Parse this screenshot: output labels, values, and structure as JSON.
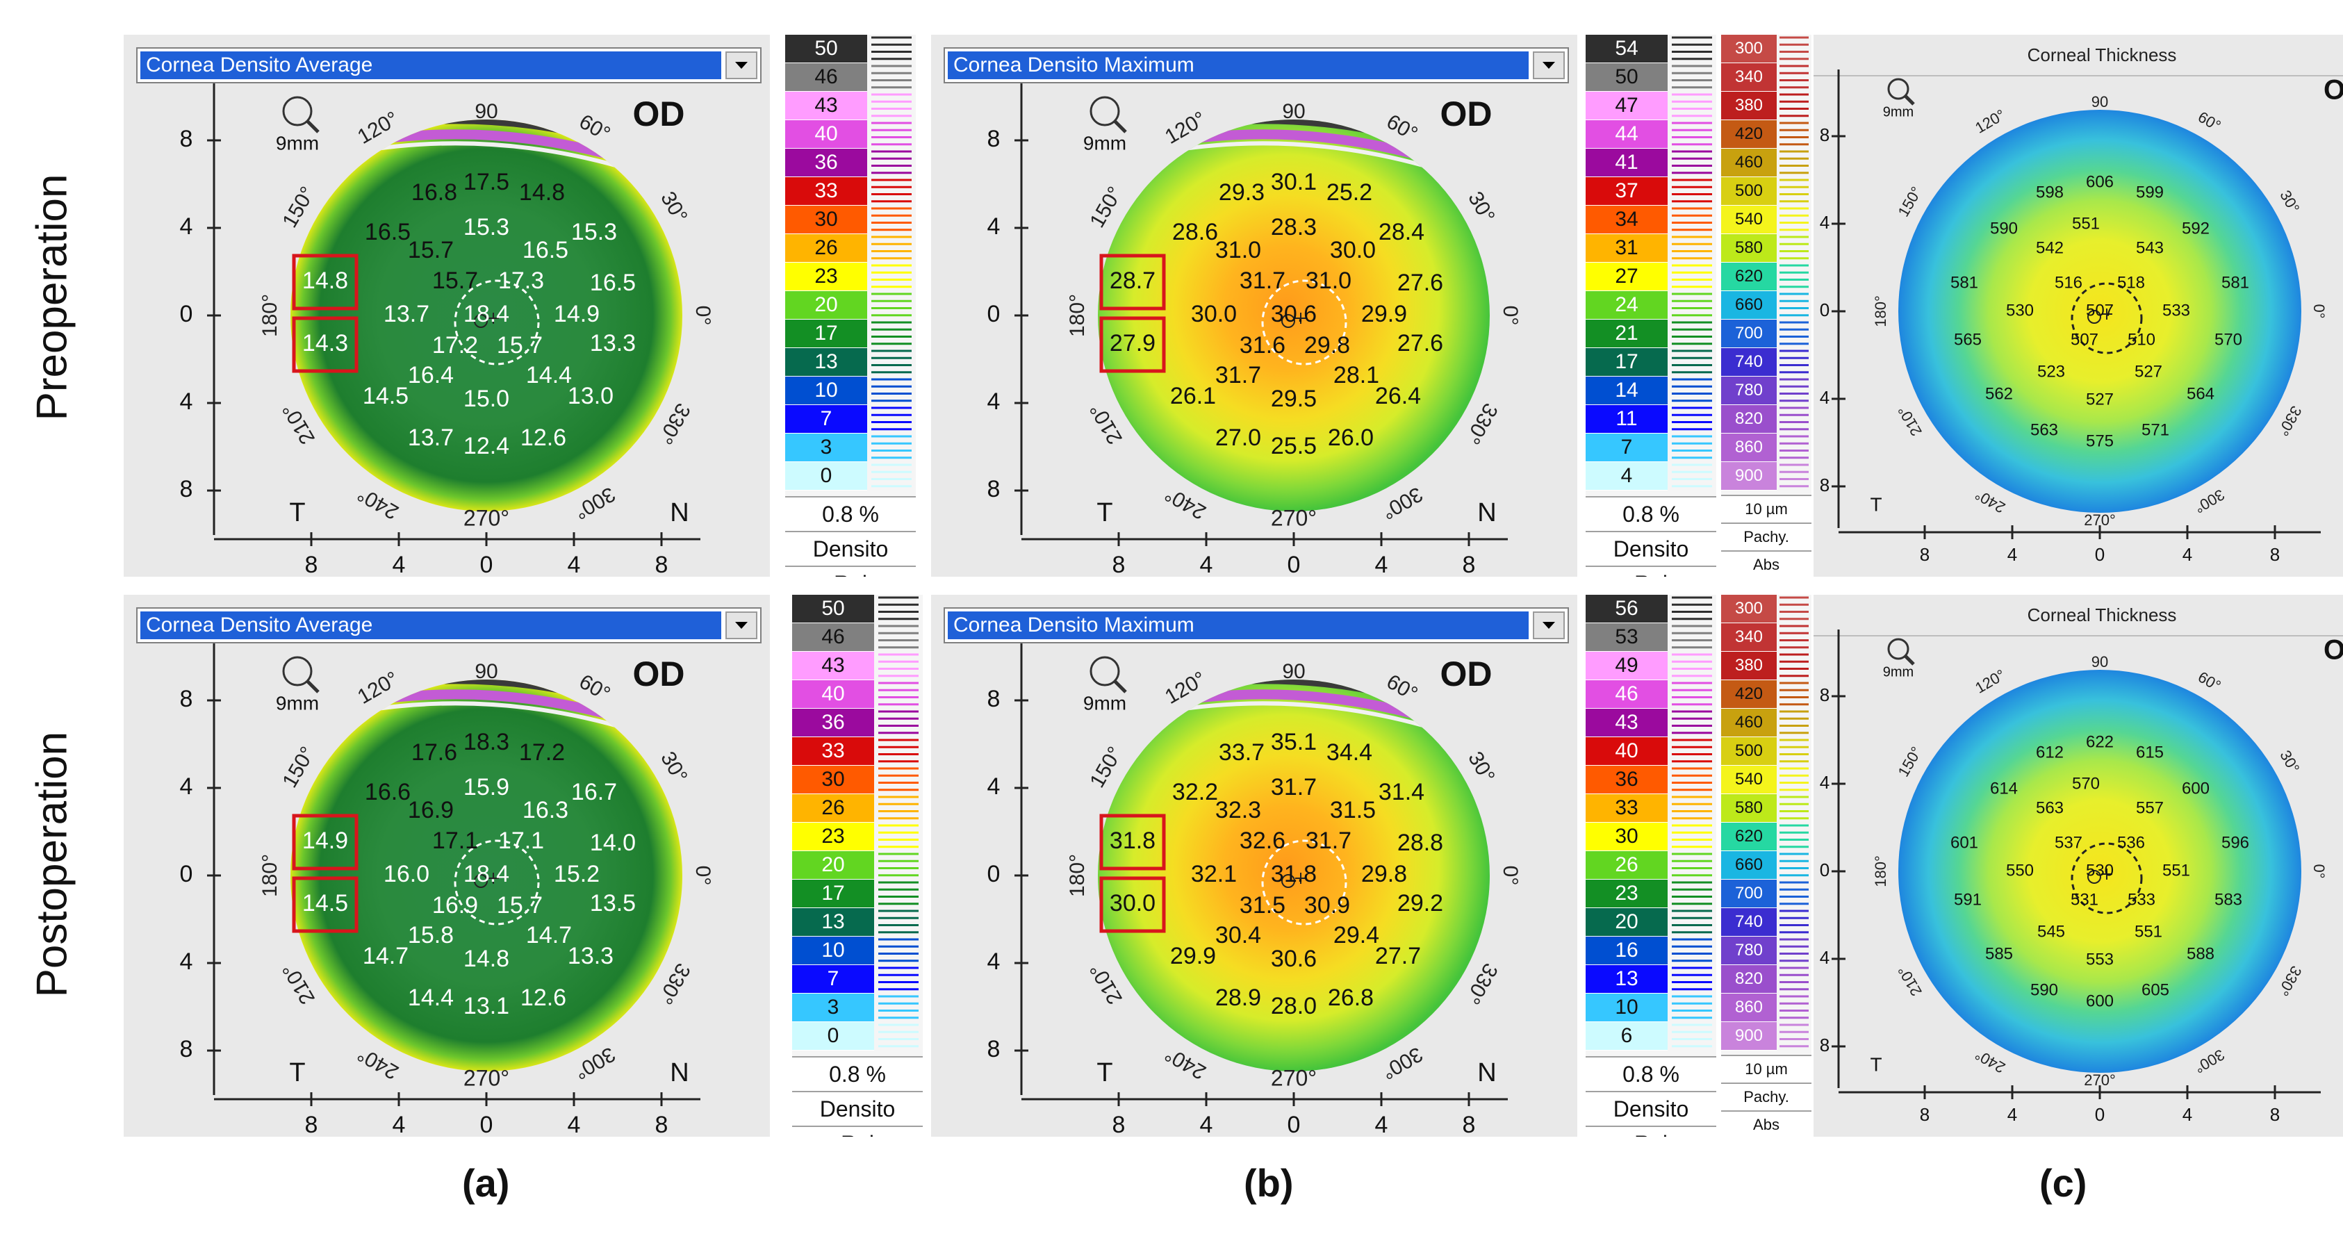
{
  "row_labels": [
    "Preoperation",
    "Postoperation"
  ],
  "panel_labels": [
    "(a)",
    "(b)",
    "(c)"
  ],
  "legends": {
    "densito_tail": [
      "0.8 %",
      "Densito",
      "Rel"
    ],
    "pachy_values": [
      "300",
      "340",
      "380",
      "420",
      "460",
      "500",
      "540",
      "580",
      "620",
      "660",
      "700",
      "740",
      "780",
      "820",
      "860",
      "900"
    ],
    "pachy_tail": [
      "10 µm",
      "Pachy.",
      "Abs"
    ]
  },
  "map_labels": {
    "zoom": "9mm",
    "eye": "OD",
    "temporal": "T",
    "nasal": "N",
    "deg_90": "90",
    "deg_120": "120°",
    "deg_150": "150°",
    "deg_180": "180°",
    "deg_210": "210°",
    "deg_240": "240°",
    "deg_270": "270°",
    "deg_300": "300°",
    "deg_330": "330°",
    "deg_0": "0°",
    "deg_30": "30°",
    "deg_60": "60°",
    "y_ticks": [
      "8",
      "4",
      "0",
      "4",
      "8"
    ],
    "x_ticks": [
      "8",
      "4",
      "0",
      "4",
      "8"
    ]
  },
  "panels": {
    "pre_avg": {
      "dropdown": "Cornea Densito Average",
      "legend": [
        "50",
        "46",
        "43",
        "40",
        "36",
        "33",
        "30",
        "26",
        "23",
        "20",
        "17",
        "13",
        "10",
        "7",
        "3",
        "0"
      ],
      "highlight": [
        "14.8",
        "14.3"
      ],
      "values": [
        "17.5",
        "16.8",
        "14.8",
        "15.3",
        "16.5",
        "15.3",
        "15.7",
        "16.5",
        "15.7",
        "17.3",
        "16.5",
        "13.7",
        "18.4",
        "14.9",
        "17.2",
        "15.7",
        "13.3",
        "16.4",
        "14.4",
        "14.5",
        "15.0",
        "13.0",
        "13.7",
        "12.4",
        "12.6"
      ]
    },
    "pre_max": {
      "dropdown": "Cornea Densito Maximum",
      "legend": [
        "54",
        "50",
        "47",
        "44",
        "41",
        "37",
        "34",
        "31",
        "27",
        "24",
        "21",
        "17",
        "14",
        "11",
        "7",
        "4"
      ],
      "highlight": [
        "28.7",
        "27.9"
      ],
      "values": [
        "30.1",
        "29.3",
        "25.2",
        "28.3",
        "28.6",
        "28.4",
        "31.0",
        "30.0",
        "31.7",
        "31.0",
        "27.6",
        "30.0",
        "30.6",
        "29.9",
        "31.6",
        "29.8",
        "27.6",
        "31.7",
        "28.1",
        "26.1",
        "29.5",
        "26.4",
        "27.0",
        "25.5",
        "26.0"
      ]
    },
    "post_avg": {
      "dropdown": "Cornea Densito Average",
      "legend": [
        "50",
        "46",
        "43",
        "40",
        "36",
        "33",
        "30",
        "26",
        "23",
        "20",
        "17",
        "13",
        "10",
        "7",
        "3",
        "0"
      ],
      "highlight": [
        "14.9",
        "14.5"
      ],
      "values": [
        "18.3",
        "17.6",
        "17.2",
        "15.9",
        "16.6",
        "16.7",
        "16.9",
        "16.3",
        "17.1",
        "17.1",
        "14.0",
        "16.0",
        "18.4",
        "15.2",
        "16.9",
        "15.7",
        "13.5",
        "15.8",
        "14.7",
        "14.7",
        "14.8",
        "13.3",
        "14.4",
        "13.1",
        "12.6"
      ]
    },
    "post_max": {
      "dropdown": "Cornea Densito Maximum",
      "legend": [
        "56",
        "53",
        "49",
        "46",
        "43",
        "40",
        "36",
        "33",
        "30",
        "26",
        "23",
        "20",
        "16",
        "13",
        "10",
        "6"
      ],
      "highlight": [
        "31.8",
        "30.0"
      ],
      "values": [
        "35.1",
        "33.7",
        "34.4",
        "31.7",
        "32.2",
        "31.4",
        "32.3",
        "31.5",
        "32.6",
        "31.7",
        "28.8",
        "32.1",
        "31.8",
        "29.8",
        "31.5",
        "30.9",
        "29.2",
        "30.4",
        "29.4",
        "29.9",
        "30.6",
        "27.7",
        "28.9",
        "28.0",
        "26.8"
      ]
    },
    "pre_thick": {
      "title": "Corneal Thickness",
      "values": [
        "606",
        "598",
        "599",
        "590",
        "551",
        "592",
        "542",
        "543",
        "581",
        "516",
        "518",
        "581",
        "530",
        "507",
        "533",
        "565",
        "507",
        "510",
        "570",
        "523",
        "527",
        "562",
        "527",
        "564",
        "563",
        "575",
        "571"
      ]
    },
    "post_thick": {
      "title": "Corneal Thickness",
      "values": [
        "622",
        "612",
        "615",
        "614",
        "570",
        "600",
        "563",
        "557",
        "601",
        "537",
        "536",
        "596",
        "550",
        "530",
        "551",
        "591",
        "531",
        "533",
        "583",
        "545",
        "551",
        "585",
        "553",
        "588",
        "590",
        "600",
        "605"
      ]
    }
  },
  "colors": {
    "densito_scale": [
      "#2e2e2e",
      "#808080",
      "#ff9cff",
      "#e24fe3",
      "#9b0a9e",
      "#d90b0b",
      "#ff5a00",
      "#ffb400",
      "#ffff00",
      "#62d621",
      "#138f24",
      "#066a4e",
      "#004fd1",
      "#0a0aff",
      "#36c7ff",
      "#cdfbff"
    ],
    "pachy_scale": [
      "#c54a46",
      "#c13434",
      "#bd1f1f",
      "#c45a14",
      "#c8a10f",
      "#d8cf12",
      "#f4f41c",
      "#bde91a",
      "#26d8a2",
      "#1ab6e2",
      "#1c62d8",
      "#3b2dd0",
      "#7040cc",
      "#9a4fcc",
      "#b161d2",
      "#c983dc"
    ],
    "highlight_box": "#d8151c",
    "dropdown_bg": "#1f60d8"
  }
}
